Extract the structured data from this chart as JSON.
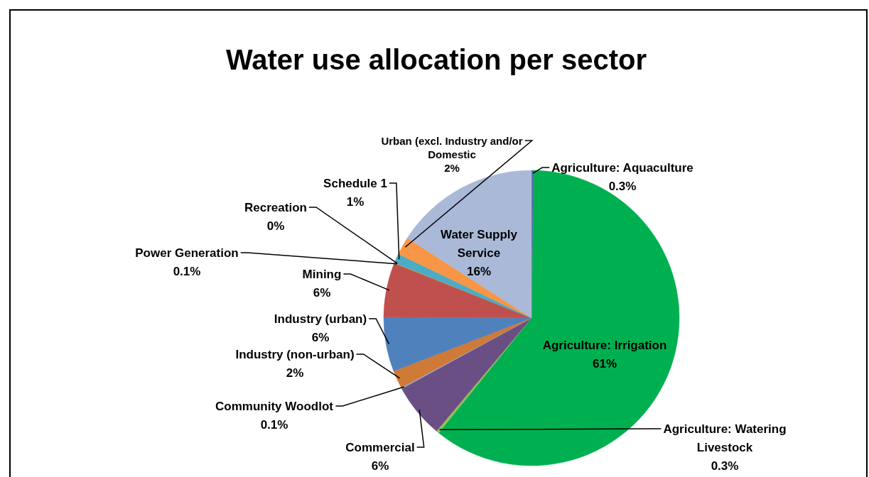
{
  "chart_data": {
    "type": "pie",
    "title": "Water use allocation per sector",
    "categories": [
      "Agriculture: Aquaculture",
      "Agriculture: Irrigation",
      "Agriculture: Watering Livestock",
      "Commercial",
      "Community Woodlot",
      "Industry (non-urban)",
      "Industry (urban)",
      "Mining",
      "Power Generation",
      "Recreation",
      "Schedule 1",
      "Urban (excl. Industry and/or Domestic",
      "Water Supply Service"
    ],
    "values": [
      0.3,
      61,
      0.3,
      6,
      0.1,
      2,
      6,
      6,
      0.1,
      0,
      1,
      2,
      16
    ],
    "value_labels": [
      "0.3%",
      "61%",
      "0.3%",
      "6%",
      "0.1%",
      "2%",
      "6%",
      "6%",
      "0.1%",
      "0%",
      "1%",
      "2%",
      "16%"
    ],
    "colors": [
      "#4f6fa8",
      "#00b050",
      "#9bbb59",
      "#6a4f85",
      "#8eb4e3",
      "#d07a37",
      "#4f81bd",
      "#c0504d",
      "#9bbb59",
      "#8064a2",
      "#4bacc6",
      "#f79646",
      "#aab9d8"
    ]
  }
}
